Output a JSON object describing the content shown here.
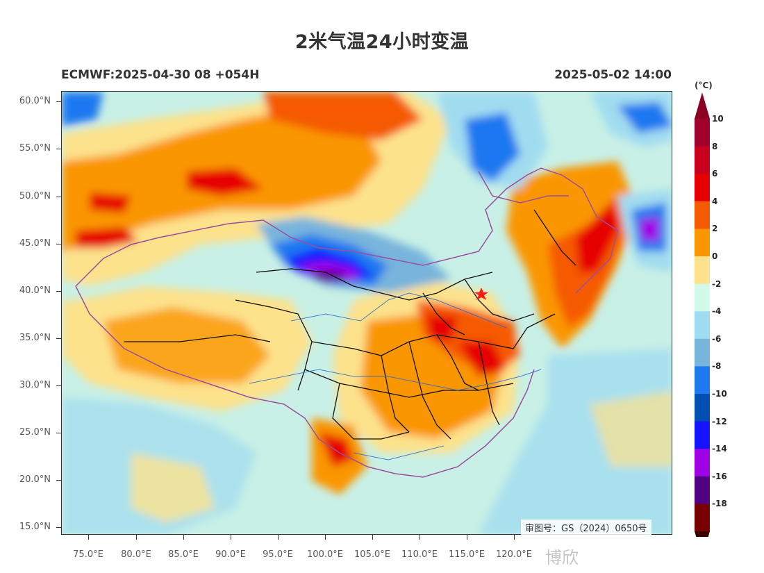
{
  "title": "2米气温24小时变温",
  "model_run": "ECMWF:2025-04-30 08 +054H",
  "valid_time": "2025-05-02 14:00",
  "colorbar": {
    "unit": "(°C)",
    "labels": [
      "10",
      "8",
      "6",
      "4",
      "2",
      "0",
      "-2",
      "-4",
      "-6",
      "-8",
      "-10",
      "-12",
      "-14",
      "-16",
      "-18"
    ],
    "colors": [
      "#a0002a",
      "#c8001e",
      "#e60000",
      "#f55a00",
      "#fa9600",
      "#fde28c",
      "#d2faeb",
      "#a0dcf0",
      "#78b4dc",
      "#1e78f0",
      "#0050b4",
      "#1414ff",
      "#a000e6",
      "#500082",
      "#780000"
    ],
    "top_arrow_color": "#8c0023",
    "bottom_arrow_color": "#3c0000"
  },
  "lat_labels": [
    "60.0°N",
    "55.0°N",
    "50.0°N",
    "45.0°N",
    "40.0°N",
    "35.0°N",
    "30.0°N",
    "25.0°N",
    "20.0°N",
    "15.0°N"
  ],
  "lon_labels": [
    "75.0°E",
    "80.0°E",
    "85.0°E",
    "90.0°E",
    "95.0°E",
    "100.0°E",
    "105.0°E",
    "110.0°E",
    "115.0°E",
    "120.0°E"
  ],
  "approval_number": "审图号：GS（2024）0650号",
  "watermark": "博欣",
  "map": {
    "marker": "capital-star-icon",
    "background_color": "#c8f0e6"
  }
}
